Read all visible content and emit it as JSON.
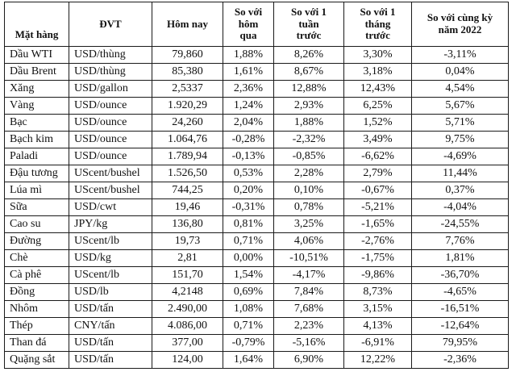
{
  "chart_data": {
    "type": "table",
    "headers": [
      "Mặt hàng",
      "ĐVT",
      "Hôm nay",
      "So với\nhôm\nqua",
      "So với 1\ntuần\ntrước",
      "So với 1\ntháng\ntrước",
      "So với cùng kỳ\nnăm 2022"
    ],
    "rows": [
      [
        "Dầu WTI",
        "USD/thùng",
        "79,860",
        "1,88%",
        "8,26%",
        "3,30%",
        "-3,11%"
      ],
      [
        "Dầu Brent",
        "USD/thùng",
        "85,380",
        "1,61%",
        "8,67%",
        "3,18%",
        "0,04%"
      ],
      [
        "Xăng",
        "USD/gallon",
        "2,5337",
        "2,36%",
        "12,88%",
        "12,43%",
        "4,54%"
      ],
      [
        "Vàng",
        "USD/ounce",
        "1.920,29",
        "1,24%",
        "2,93%",
        "6,25%",
        "5,67%"
      ],
      [
        "Bạc",
        "USD/ounce",
        "24,260",
        "2,04%",
        "1,88%",
        "1,52%",
        "5,71%"
      ],
      [
        "Bạch kim",
        "USD/ounce",
        "1.064,76",
        "-0,28%",
        "-2,32%",
        "3,49%",
        "9,75%"
      ],
      [
        "Paladi",
        "USD/ounce",
        "1.789,94",
        "-0,13%",
        "-0,85%",
        "-6,62%",
        "-4,69%"
      ],
      [
        "Đậu tương",
        "UScent/bushel",
        "1.526,50",
        "0,53%",
        "2,28%",
        "2,79%",
        "11,44%"
      ],
      [
        "Lúa mì",
        "UScent/bushel",
        "744,25",
        "0,20%",
        "0,10%",
        "-0,67%",
        "0,37%"
      ],
      [
        "Sữa",
        "USD/cwt",
        "19,46",
        "-0,31%",
        "0,78%",
        "-5,21%",
        "-4,04%"
      ],
      [
        "Cao su",
        "JPY/kg",
        "136,80",
        "0,81%",
        "3,25%",
        "-1,65%",
        "-24,55%"
      ],
      [
        "Đường",
        "UScent/lb",
        "19,73",
        "0,71%",
        "4,06%",
        "-2,76%",
        "7,76%"
      ],
      [
        "Chè",
        "USD/kg",
        "2,81",
        "0,00%",
        "-10,51%",
        "-1,75%",
        "1,81%"
      ],
      [
        "Cà phê",
        "UScent/lb",
        "151,70",
        "1,54%",
        "-4,17%",
        "-9,86%",
        "-36,70%"
      ],
      [
        "Đồng",
        "USD/lb",
        "4,2148",
        "0,69%",
        "7,84%",
        "8,73%",
        "-4,65%"
      ],
      [
        "Nhôm",
        "USD/tấn",
        "2.490,00",
        "1,08%",
        "7,68%",
        "3,15%",
        "-16,51%"
      ],
      [
        "Thép",
        "CNY/tấn",
        "4.086,00",
        "0,71%",
        "2,23%",
        "4,13%",
        "-12,64%"
      ],
      [
        "Than đá",
        "USD/tấn",
        "377,00",
        "-0,79%",
        "-5,16%",
        "-6,91%",
        "79,95%"
      ],
      [
        "Quặng sắt",
        "USD/tấn",
        "124,00",
        "1,64%",
        "6,90%",
        "12,22%",
        "-2,36%"
      ]
    ],
    "column_names_semantic": [
      "commodity-name",
      "unit",
      "today-price",
      "pct-vs-yesterday",
      "pct-vs-week",
      "pct-vs-month",
      "pct-vs-same-period-2022"
    ]
  },
  "colors": {
    "border": "#1a1a1a",
    "text": "#111111",
    "background": "#ffffff"
  }
}
